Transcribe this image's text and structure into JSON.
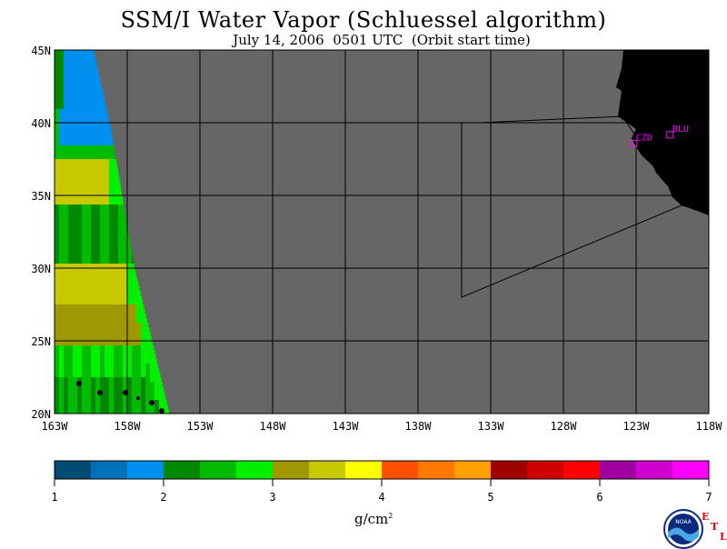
{
  "title": "SSM/I Water Vapor (Schluessel algorithm)",
  "subtitle": "July 14, 2006  0501 UTC  (Orbit start time)",
  "map": {
    "lat_labels": [
      "45N",
      "40N",
      "35N",
      "30N",
      "25N",
      "20N"
    ],
    "lon_labels": [
      "163W",
      "158W",
      "153W",
      "148W",
      "143W",
      "138W",
      "133W",
      "128W",
      "123W",
      "118W"
    ],
    "lat_range": [
      20,
      45
    ],
    "lon_range": [
      -163,
      -118
    ],
    "stations": [
      {
        "label": "CZD",
        "lat": 38.6,
        "lon": -123.2
      },
      {
        "label": "BLU",
        "lat": 39.2,
        "lon": -120.7
      }
    ],
    "colors": {
      "no_data": "#666666",
      "land": "#000000",
      "grid": "#000000",
      "station": "#ff00ff"
    }
  },
  "colorbar": {
    "ticks": [
      "1",
      "2",
      "3",
      "4",
      "5",
      "6",
      "7"
    ],
    "range": [
      1,
      7
    ],
    "unit": "g/cm",
    "unit_exp": "2",
    "colors": [
      "#004c73",
      "#0070b8",
      "#0090f0",
      "#008800",
      "#00bb00",
      "#00f000",
      "#a09800",
      "#c8c800",
      "#ffff00",
      "#ff5000",
      "#ff7800",
      "#ffa000",
      "#a00000",
      "#d00000",
      "#ff0000",
      "#a000a0",
      "#d000d0",
      "#ff00ff"
    ]
  },
  "logo": {
    "text": "NOAA",
    "letters": [
      "E",
      "T",
      "L"
    ]
  }
}
